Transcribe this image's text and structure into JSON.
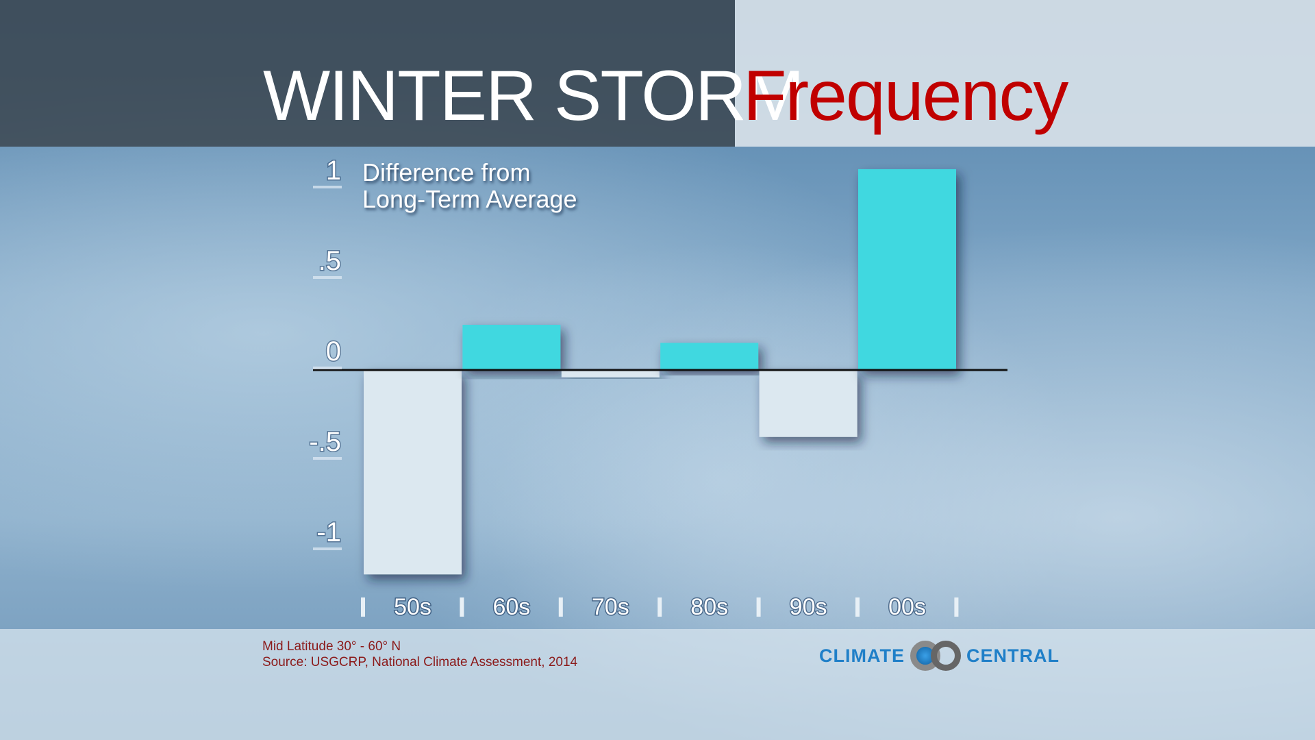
{
  "title": {
    "part1": "WINTER STORM",
    "part2": "Frequency"
  },
  "annotation": {
    "line1": "Difference from",
    "line2": "Long-Term Average"
  },
  "footer": {
    "line1": "Mid Latitude 30° - 60° N",
    "line2": "Source: USGCRP, National Climate Assessment, 2014"
  },
  "logo": {
    "left": "CLIMATE",
    "right": "CENTRAL"
  },
  "chart_data": {
    "type": "bar",
    "ylabel": "Difference from Long-Term Average",
    "categories": [
      "50s",
      "60s",
      "70s",
      "80s",
      "90s",
      "00s"
    ],
    "values": [
      -1.13,
      0.25,
      -0.04,
      0.15,
      -0.37,
      1.11
    ],
    "yticks": [
      1,
      0.5,
      0,
      -0.5,
      -1
    ],
    "ytick_labels": [
      "1",
      ".5",
      "0",
      "-.5",
      "-1"
    ],
    "ylim": [
      -1.15,
      1.15
    ],
    "colors": {
      "positive": "#3fd8e0",
      "negative": "#dce8f0",
      "title_accent": "#c00000"
    },
    "grid": false
  }
}
